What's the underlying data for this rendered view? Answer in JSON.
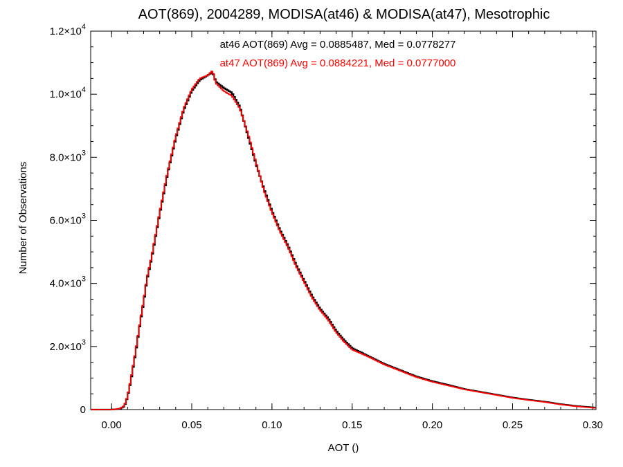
{
  "chart_data": {
    "type": "histogram-step",
    "title": "AOT(869), 2004289, MODISA(at46) & MODISA(at47), Mesotrophic",
    "xlabel": "AOT ()",
    "ylabel": "Number of Observations",
    "xlim": [
      -0.013,
      0.302
    ],
    "ylim": [
      0,
      12000
    ],
    "grid": false,
    "x_ticks": [
      {
        "value": 0.0,
        "label": "0.00"
      },
      {
        "value": 0.05,
        "label": "0.05"
      },
      {
        "value": 0.1,
        "label": "0.10"
      },
      {
        "value": 0.15,
        "label": "0.15"
      },
      {
        "value": 0.2,
        "label": "0.20"
      },
      {
        "value": 0.25,
        "label": "0.25"
      },
      {
        "value": 0.3,
        "label": "0.30"
      }
    ],
    "y_ticks": [
      {
        "value": 0,
        "mantissa": "0",
        "exponent": ""
      },
      {
        "value": 2000,
        "mantissa": "2.0×10",
        "exponent": "3"
      },
      {
        "value": 4000,
        "mantissa": "4.0×10",
        "exponent": "3"
      },
      {
        "value": 6000,
        "mantissa": "6.0×10",
        "exponent": "3"
      },
      {
        "value": 8000,
        "mantissa": "8.0×10",
        "exponent": "3"
      },
      {
        "value": 10000,
        "mantissa": "1.0×10",
        "exponent": "4"
      },
      {
        "value": 12000,
        "mantissa": "1.2×10",
        "exponent": "4"
      }
    ],
    "annotations": [
      {
        "text": "at46 AOT(869) Avg = 0.0885487, Med = 0.0778277",
        "color": "#000000"
      },
      {
        "text": "at47 AOT(869) Avg = 0.0884221, Med = 0.0777000",
        "color": "#ff0000"
      }
    ],
    "series": [
      {
        "color": "#000000",
        "x": [
          -0.013,
          0.0,
          0.005,
          0.008,
          0.01,
          0.012,
          0.015,
          0.018,
          0.02,
          0.022,
          0.025,
          0.03,
          0.035,
          0.04,
          0.045,
          0.05,
          0.055,
          0.06,
          0.063,
          0.065,
          0.07,
          0.075,
          0.08,
          0.085,
          0.09,
          0.095,
          0.1,
          0.105,
          0.11,
          0.115,
          0.12,
          0.125,
          0.13,
          0.135,
          0.14,
          0.145,
          0.15,
          0.16,
          0.17,
          0.18,
          0.19,
          0.2,
          0.21,
          0.22,
          0.23,
          0.24,
          0.25,
          0.26,
          0.27,
          0.28,
          0.29,
          0.302
        ],
        "y": [
          0,
          0,
          20,
          100,
          400,
          900,
          1800,
          2800,
          3400,
          4100,
          4800,
          6200,
          7500,
          8600,
          9500,
          10100,
          10450,
          10600,
          10700,
          10400,
          10200,
          10050,
          9600,
          8700,
          7800,
          7000,
          6300,
          5700,
          5200,
          4600,
          4100,
          3600,
          3200,
          2900,
          2500,
          2200,
          1950,
          1700,
          1450,
          1250,
          1050,
          900,
          780,
          650,
          560,
          470,
          380,
          310,
          250,
          170,
          110,
          60
        ]
      },
      {
        "color": "#ff0000",
        "x": [
          -0.013,
          0.0,
          0.005,
          0.008,
          0.01,
          0.012,
          0.015,
          0.018,
          0.02,
          0.022,
          0.025,
          0.03,
          0.035,
          0.04,
          0.045,
          0.05,
          0.055,
          0.06,
          0.063,
          0.065,
          0.07,
          0.075,
          0.08,
          0.085,
          0.09,
          0.095,
          0.1,
          0.105,
          0.11,
          0.115,
          0.12,
          0.125,
          0.13,
          0.135,
          0.14,
          0.145,
          0.15,
          0.16,
          0.17,
          0.18,
          0.19,
          0.2,
          0.21,
          0.22,
          0.23,
          0.24,
          0.25,
          0.26,
          0.27,
          0.28,
          0.29,
          0.302
        ],
        "y": [
          0,
          0,
          30,
          120,
          420,
          950,
          1850,
          2850,
          3450,
          4150,
          4850,
          6250,
          7550,
          8650,
          9550,
          10150,
          10500,
          10600,
          10750,
          10350,
          10100,
          9950,
          9550,
          8750,
          7850,
          6950,
          6250,
          5650,
          5150,
          4550,
          4050,
          3550,
          3150,
          2850,
          2450,
          2150,
          1900,
          1680,
          1430,
          1230,
          1030,
          880,
          760,
          640,
          550,
          460,
          370,
          300,
          240,
          160,
          100,
          50
        ]
      }
    ]
  }
}
